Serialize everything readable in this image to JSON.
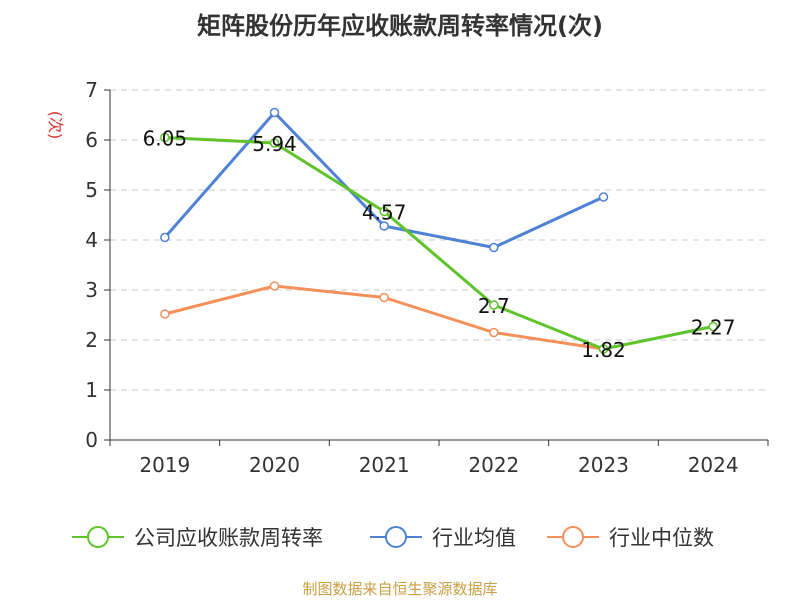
{
  "chart_data": {
    "type": "line",
    "title": "矩阵股份历年应收账款周转率情况(次)",
    "ylabel": "(次)",
    "xlabel": "",
    "categories": [
      "2019",
      "2020",
      "2021",
      "2022",
      "2023",
      "2024"
    ],
    "ylim": [
      0,
      7
    ],
    "yticks": [
      0,
      1,
      2,
      3,
      4,
      5,
      6,
      7
    ],
    "grid": true,
    "legend_position": "bottom",
    "series": [
      {
        "name": "公司应收账款周转率",
        "color": "#5ec42a",
        "values": [
          6.05,
          5.94,
          4.57,
          2.7,
          1.82,
          2.27
        ],
        "labels": [
          "6.05",
          "5.94",
          "4.57",
          "2.7",
          "1.82",
          "2.27"
        ]
      },
      {
        "name": "行业均值",
        "color": "#4f81d6",
        "values": [
          4.05,
          6.55,
          4.28,
          3.85,
          4.86,
          null
        ]
      },
      {
        "name": "行业中位数",
        "color": "#f5905a",
        "values": [
          2.52,
          3.08,
          2.85,
          2.15,
          1.82,
          null
        ]
      }
    ]
  },
  "source": "制图数据来自恒生聚源数据库"
}
